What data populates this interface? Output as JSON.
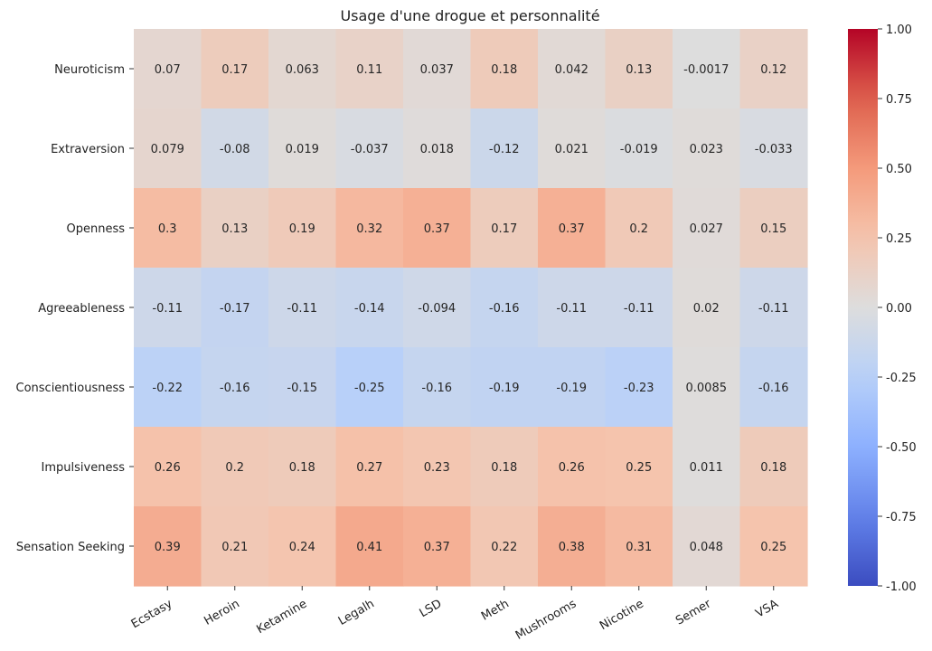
{
  "chart_data": {
    "type": "heatmap",
    "title": "Usage d'une drogue et personnalité",
    "rows": [
      "Neuroticism",
      "Extraversion",
      "Openness",
      "Agreeableness",
      "Conscientiousness",
      "Impulsiveness",
      "Sensation Seeking"
    ],
    "columns": [
      "Ecstasy",
      "Heroin",
      "Ketamine",
      "Legalh",
      "LSD",
      "Meth",
      "Mushrooms",
      "Nicotine",
      "Semer",
      "VSA"
    ],
    "values": [
      [
        0.07,
        0.17,
        0.063,
        0.11,
        0.037,
        0.18,
        0.042,
        0.13,
        -0.0017,
        0.12
      ],
      [
        0.079,
        -0.08,
        0.019,
        -0.037,
        0.018,
        -0.12,
        0.021,
        -0.019,
        0.023,
        -0.033
      ],
      [
        0.3,
        0.13,
        0.19,
        0.32,
        0.37,
        0.17,
        0.37,
        0.2,
        0.027,
        0.15
      ],
      [
        -0.11,
        -0.17,
        -0.11,
        -0.14,
        -0.094,
        -0.16,
        -0.11,
        -0.11,
        0.02,
        -0.11
      ],
      [
        -0.22,
        -0.16,
        -0.15,
        -0.25,
        -0.16,
        -0.19,
        -0.19,
        -0.23,
        0.0085,
        -0.16
      ],
      [
        0.26,
        0.2,
        0.18,
        0.27,
        0.23,
        0.18,
        0.26,
        0.25,
        0.011,
        0.18
      ],
      [
        0.39,
        0.21,
        0.24,
        0.41,
        0.37,
        0.22,
        0.38,
        0.31,
        0.048,
        0.25
      ]
    ],
    "labels": [
      [
        "0.07",
        "0.17",
        "0.063",
        "0.11",
        "0.037",
        "0.18",
        "0.042",
        "0.13",
        "-0.0017",
        "0.12"
      ],
      [
        "0.079",
        "-0.08",
        "0.019",
        "-0.037",
        "0.018",
        "-0.12",
        "0.021",
        "-0.019",
        "0.023",
        "-0.033"
      ],
      [
        "0.3",
        "0.13",
        "0.19",
        "0.32",
        "0.37",
        "0.17",
        "0.37",
        "0.2",
        "0.027",
        "0.15"
      ],
      [
        "-0.11",
        "-0.17",
        "-0.11",
        "-0.14",
        "-0.094",
        "-0.16",
        "-0.11",
        "-0.11",
        "0.02",
        "-0.11"
      ],
      [
        "-0.22",
        "-0.16",
        "-0.15",
        "-0.25",
        "-0.16",
        "-0.19",
        "-0.19",
        "-0.23",
        "0.0085",
        "-0.16"
      ],
      [
        "0.26",
        "0.2",
        "0.18",
        "0.27",
        "0.23",
        "0.18",
        "0.26",
        "0.25",
        "0.011",
        "0.18"
      ],
      [
        "0.39",
        "0.21",
        "0.24",
        "0.41",
        "0.37",
        "0.22",
        "0.38",
        "0.31",
        "0.048",
        "0.25"
      ]
    ],
    "colorscale": "coolwarm",
    "vmin": -1,
    "vmax": 1,
    "colorbar_ticks": [
      "-1.00",
      "-0.75",
      "-0.50",
      "-0.25",
      "0.00",
      "0.25",
      "0.50",
      "0.75",
      "1.00"
    ],
    "colorbar_values": [
      -1,
      -0.75,
      -0.5,
      -0.25,
      0,
      0.25,
      0.5,
      0.75,
      1
    ]
  }
}
